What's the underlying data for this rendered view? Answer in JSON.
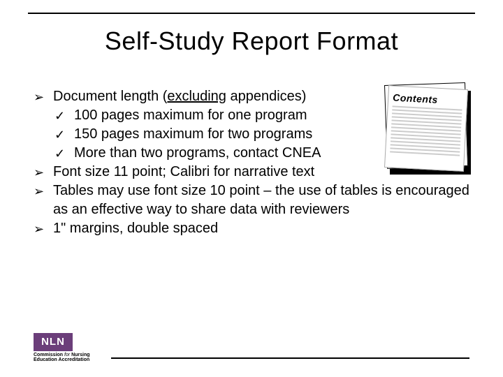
{
  "colors": {
    "background": "#ffffff",
    "text": "#000000",
    "rule": "#000000",
    "logo_bg": "#6b3e7a",
    "logo_text": "#ffffff",
    "contents_line": "#cccccc"
  },
  "typography": {
    "title_fontsize": 36,
    "body_fontsize": 20,
    "font_family": "Arial"
  },
  "title": "Self-Study Report Format",
  "bullets": [
    {
      "marker": "➢",
      "text_pre": "Document length (",
      "text_underlined": "excluding",
      "text_post": " appendices)",
      "sub": [
        {
          "marker": "✓",
          "text": "100 pages maximum for one program"
        },
        {
          "marker": "✓",
          "text": "150 pages maximum for two programs"
        },
        {
          "marker": "✓",
          "text": "More than two programs, contact CNEA"
        }
      ]
    },
    {
      "marker": "➢",
      "text": "Font size 11 point; Calibri for narrative text"
    },
    {
      "marker": "➢",
      "text": "Tables may use font size 10 point – the use of tables is encouraged as an effective way to share data with reviewers"
    },
    {
      "marker": "➢",
      "text": "1\" margins, double spaced"
    }
  ],
  "contents_image": {
    "heading": "Contents"
  },
  "logo": {
    "box": "NLN",
    "line1": "Commission ",
    "line1_italic": "for",
    "line1_end": " Nursing",
    "line2": "Education Accreditation"
  }
}
